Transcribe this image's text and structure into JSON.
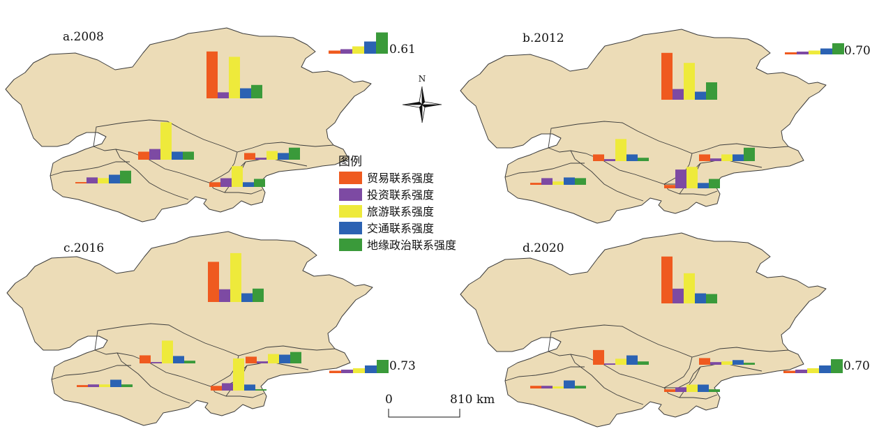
{
  "colors": {
    "land": "#ecdcb7",
    "trade": "#ef5a1f",
    "investment": "#7d4aa3",
    "tourism": "#eeea3b",
    "transport": "#2b62b3",
    "geopolitics": "#3a9a3a"
  },
  "panels": [
    {
      "label": "a.2008"
    },
    {
      "label": "b.2012"
    },
    {
      "label": "c.2016"
    },
    {
      "label": "d.2020"
    }
  ],
  "legend": {
    "title": "图例",
    "items": [
      {
        "label": "贸易联系强度",
        "color": "#ef5a1f"
      },
      {
        "label": "投资联系强度",
        "color": "#7d4aa3"
      },
      {
        "label": "旅游联系强度",
        "color": "#eeea3b"
      },
      {
        "label": "交通联系强度",
        "color": "#2b62b3"
      },
      {
        "label": "地缘政治联系强度",
        "color": "#3a9a3a"
      }
    ]
  },
  "reference_values": [
    "0.61",
    "0.70",
    "0.73",
    "0.70"
  ],
  "compass": {
    "label": "N",
    "icon": "north-arrow-icon"
  },
  "scale_bar": {
    "start": "0",
    "end": "810 km"
  },
  "chart_data": [
    {
      "type": "bar",
      "panel": "a.2008",
      "categories": [
        "贸易联系强度",
        "投资联系强度",
        "旅游联系强度",
        "交通联系强度",
        "地缘政治联系强度"
      ],
      "reference": {
        "value": 0.61,
        "values": [
          0.09,
          0.13,
          0.21,
          0.35,
          0.61
        ]
      },
      "countries": [
        {
          "values": [
            0.7,
            0.09,
            0.62,
            0.15,
            0.2
          ]
        },
        {
          "values": [
            0.12,
            0.16,
            0.56,
            0.12,
            0.12
          ]
        },
        {
          "values": [
            0.1,
            0.03,
            0.13,
            0.1,
            0.18
          ]
        },
        {
          "values": [
            0.02,
            0.09,
            0.08,
            0.13,
            0.19
          ]
        },
        {
          "values": [
            0.07,
            0.13,
            0.31,
            0.07,
            0.12
          ]
        }
      ]
    },
    {
      "type": "bar",
      "panel": "b.2012",
      "categories": [
        "贸易联系强度",
        "投资联系强度",
        "旅游联系强度",
        "交通联系强度",
        "地缘政治联系强度"
      ],
      "reference": {
        "value": 0.7,
        "values": [
          0.06,
          0.08,
          0.11,
          0.17,
          0.32
        ]
      },
      "countries": [
        {
          "values": [
            0.7,
            0.16,
            0.55,
            0.12,
            0.26
          ]
        },
        {
          "values": [
            0.1,
            0.03,
            0.33,
            0.1,
            0.05
          ]
        },
        {
          "values": [
            0.1,
            0.04,
            0.1,
            0.1,
            0.2
          ]
        },
        {
          "values": [
            0.03,
            0.1,
            0.05,
            0.11,
            0.1
          ]
        },
        {
          "values": [
            0.05,
            0.28,
            0.32,
            0.08,
            0.14
          ]
        }
      ]
    },
    {
      "type": "bar",
      "panel": "c.2016",
      "categories": [
        "贸易联系强度",
        "投资联系强度",
        "旅游联系强度",
        "交通联系强度",
        "地缘政治联系强度"
      ],
      "reference": {
        "value": 0.73,
        "values": [
          0.07,
          0.1,
          0.14,
          0.22,
          0.38
        ]
      },
      "countries": [
        {
          "values": [
            0.6,
            0.19,
            0.73,
            0.13,
            0.2
          ]
        },
        {
          "values": [
            0.12,
            0.02,
            0.34,
            0.11,
            0.04
          ]
        },
        {
          "values": [
            0.1,
            0.03,
            0.14,
            0.13,
            0.17
          ]
        },
        {
          "values": [
            0.03,
            0.04,
            0.04,
            0.11,
            0.04
          ]
        },
        {
          "values": [
            0.07,
            0.11,
            0.48,
            0.09,
            0.02
          ]
        }
      ]
    },
    {
      "type": "bar",
      "panel": "d.2020",
      "categories": [
        "贸易联系强度",
        "投资联系强度",
        "旅游联系强度",
        "交通联系强度",
        "地缘政治联系强度"
      ],
      "reference": {
        "value": 0.7,
        "values": [
          0.07,
          0.1,
          0.14,
          0.22,
          0.4
        ]
      },
      "countries": [
        {
          "values": [
            0.7,
            0.22,
            0.45,
            0.15,
            0.14
          ]
        },
        {
          "values": [
            0.22,
            0.02,
            0.09,
            0.14,
            0.05
          ]
        },
        {
          "values": [
            0.1,
            0.04,
            0.05,
            0.07,
            0.03
          ]
        },
        {
          "values": [
            0.04,
            0.04,
            0.03,
            0.12,
            0.04
          ]
        },
        {
          "values": [
            0.04,
            0.07,
            0.11,
            0.11,
            0.04
          ]
        }
      ]
    }
  ]
}
